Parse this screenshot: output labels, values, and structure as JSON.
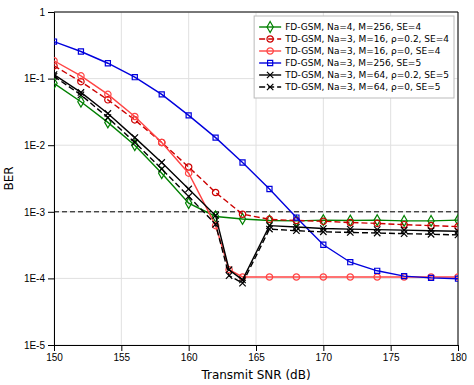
{
  "chart_data": {
    "type": "line",
    "xlabel": "Transmit SNR (dB)",
    "ylabel": "BER",
    "log": "y",
    "grid": true,
    "legend": "upper-right",
    "xlim": [
      150,
      180
    ],
    "ylim": [
      1e-05,
      1
    ],
    "xticks": [
      150,
      155,
      160,
      165,
      170,
      175,
      180
    ],
    "yticks": [
      {
        "value": 1e-05,
        "label": "1E-5"
      },
      {
        "value": 0.0001,
        "label": "1E-4"
      },
      {
        "value": 0.001,
        "label": "1E-3"
      },
      {
        "value": 0.01,
        "label": "1E-2"
      },
      {
        "value": 0.1,
        "label": "1E-1"
      },
      1
    ],
    "hline": 0.001,
    "series": [
      {
        "name": "FD-GSM, Na=4, M=256, SE=4",
        "color": "#008000",
        "line_style": "solid",
        "marker": "diamond",
        "x": [
          150,
          152,
          154,
          156,
          158,
          160,
          162,
          164,
          166,
          168,
          170,
          172,
          174,
          176,
          178,
          180
        ],
        "values": [
          0.085,
          0.045,
          0.022,
          0.01,
          0.0038,
          0.00135,
          0.00085,
          0.00078,
          0.00074,
          0.00073,
          0.00075,
          0.00074,
          0.00075,
          0.00073,
          0.00073,
          0.00075
        ]
      },
      {
        "name": "TD-GSM, Na=3, M=16, ρ=0.2, SE=4",
        "color": "#cc0000",
        "line_style": "dashed",
        "marker": "circle",
        "x": [
          150,
          152,
          154,
          156,
          158,
          160,
          162,
          164,
          166,
          168,
          170,
          172,
          174,
          176,
          178,
          180
        ],
        "values": [
          0.155,
          0.09,
          0.048,
          0.024,
          0.011,
          0.0047,
          0.00195,
          0.00092,
          0.00077,
          0.00074,
          0.00072,
          0.00069,
          0.00067,
          0.00064,
          0.00062,
          0.0006
        ]
      },
      {
        "name": "TD-GSM, Na=3, M=16, ρ=0, SE=4",
        "color": "#ff4444",
        "line_style": "solid",
        "marker": "circle",
        "x": [
          150,
          152,
          154,
          156,
          158,
          160,
          162,
          163,
          164,
          166,
          168,
          170,
          172,
          174,
          176,
          178,
          180
        ],
        "values": [
          0.185,
          0.11,
          0.058,
          0.027,
          0.011,
          0.0038,
          0.00062,
          0.000135,
          0.000105,
          0.000105,
          0.000105,
          0.000105,
          0.000105,
          0.000105,
          0.000105,
          0.000105,
          0.000105
        ]
      },
      {
        "name": "FD-GSM, Na=3, M=256, SE=5",
        "color": "#0000dd",
        "line_style": "solid",
        "marker": "square",
        "x": [
          150,
          152,
          154,
          156,
          158,
          160,
          162,
          164,
          166,
          168,
          170,
          172,
          174,
          176,
          178,
          180
        ],
        "values": [
          0.36,
          0.255,
          0.17,
          0.105,
          0.058,
          0.028,
          0.013,
          0.0055,
          0.0022,
          0.00082,
          0.00032,
          0.000175,
          0.00013,
          0.000108,
          0.000102,
          9.9e-05
        ]
      },
      {
        "name": "TD-GSM, Na=3, M=64, ρ=0.2, SE=5",
        "color": "#000000",
        "line_style": "solid",
        "marker": "x",
        "x": [
          150,
          152,
          154,
          156,
          158,
          160,
          162,
          163,
          164,
          166,
          168,
          170,
          172,
          174,
          176,
          178,
          180
        ],
        "values": [
          0.115,
          0.062,
          0.03,
          0.013,
          0.0055,
          0.0022,
          0.00088,
          0.000135,
          9.5e-05,
          0.00062,
          0.00059,
          0.00056,
          0.00055,
          0.00054,
          0.00053,
          0.00052,
          0.00051
        ]
      },
      {
        "name": "TD-GSM, Na=3, M=64, ρ=0, SE=5",
        "color": "#000000",
        "line_style": "dashed",
        "marker": "x",
        "x": [
          150,
          152,
          154,
          156,
          158,
          160,
          162,
          163,
          164,
          166,
          168,
          170,
          172,
          174,
          176,
          178,
          180
        ],
        "values": [
          0.108,
          0.057,
          0.026,
          0.011,
          0.0044,
          0.0017,
          0.00065,
          0.00011,
          8.5e-05,
          0.00055,
          0.00052,
          0.0005,
          0.00049,
          0.00048,
          0.00047,
          0.00046,
          0.00045
        ]
      }
    ]
  }
}
